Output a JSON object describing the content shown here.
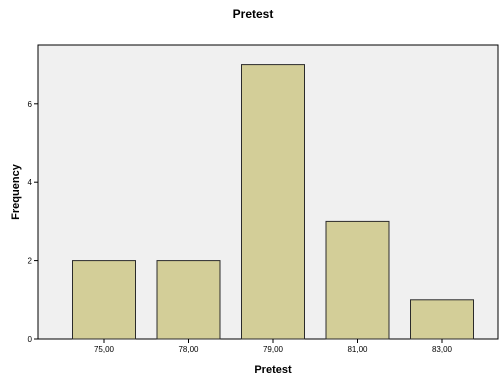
{
  "chart_data": {
    "type": "bar",
    "title": "Pretest",
    "xlabel": "Pretest",
    "ylabel": "Frequency",
    "categories": [
      "75,00",
      "78,00",
      "79,00",
      "81,00",
      "83,00"
    ],
    "values": [
      2,
      2,
      7,
      3,
      1
    ],
    "ylim": [
      0,
      7.5
    ],
    "yticks": [
      "0",
      "2",
      "4",
      "6"
    ],
    "grid": false,
    "colors": {
      "bar_fill": "#d3ce98",
      "bar_stroke": "#2b2b2b",
      "plot_background": "#f0f0f0"
    }
  }
}
